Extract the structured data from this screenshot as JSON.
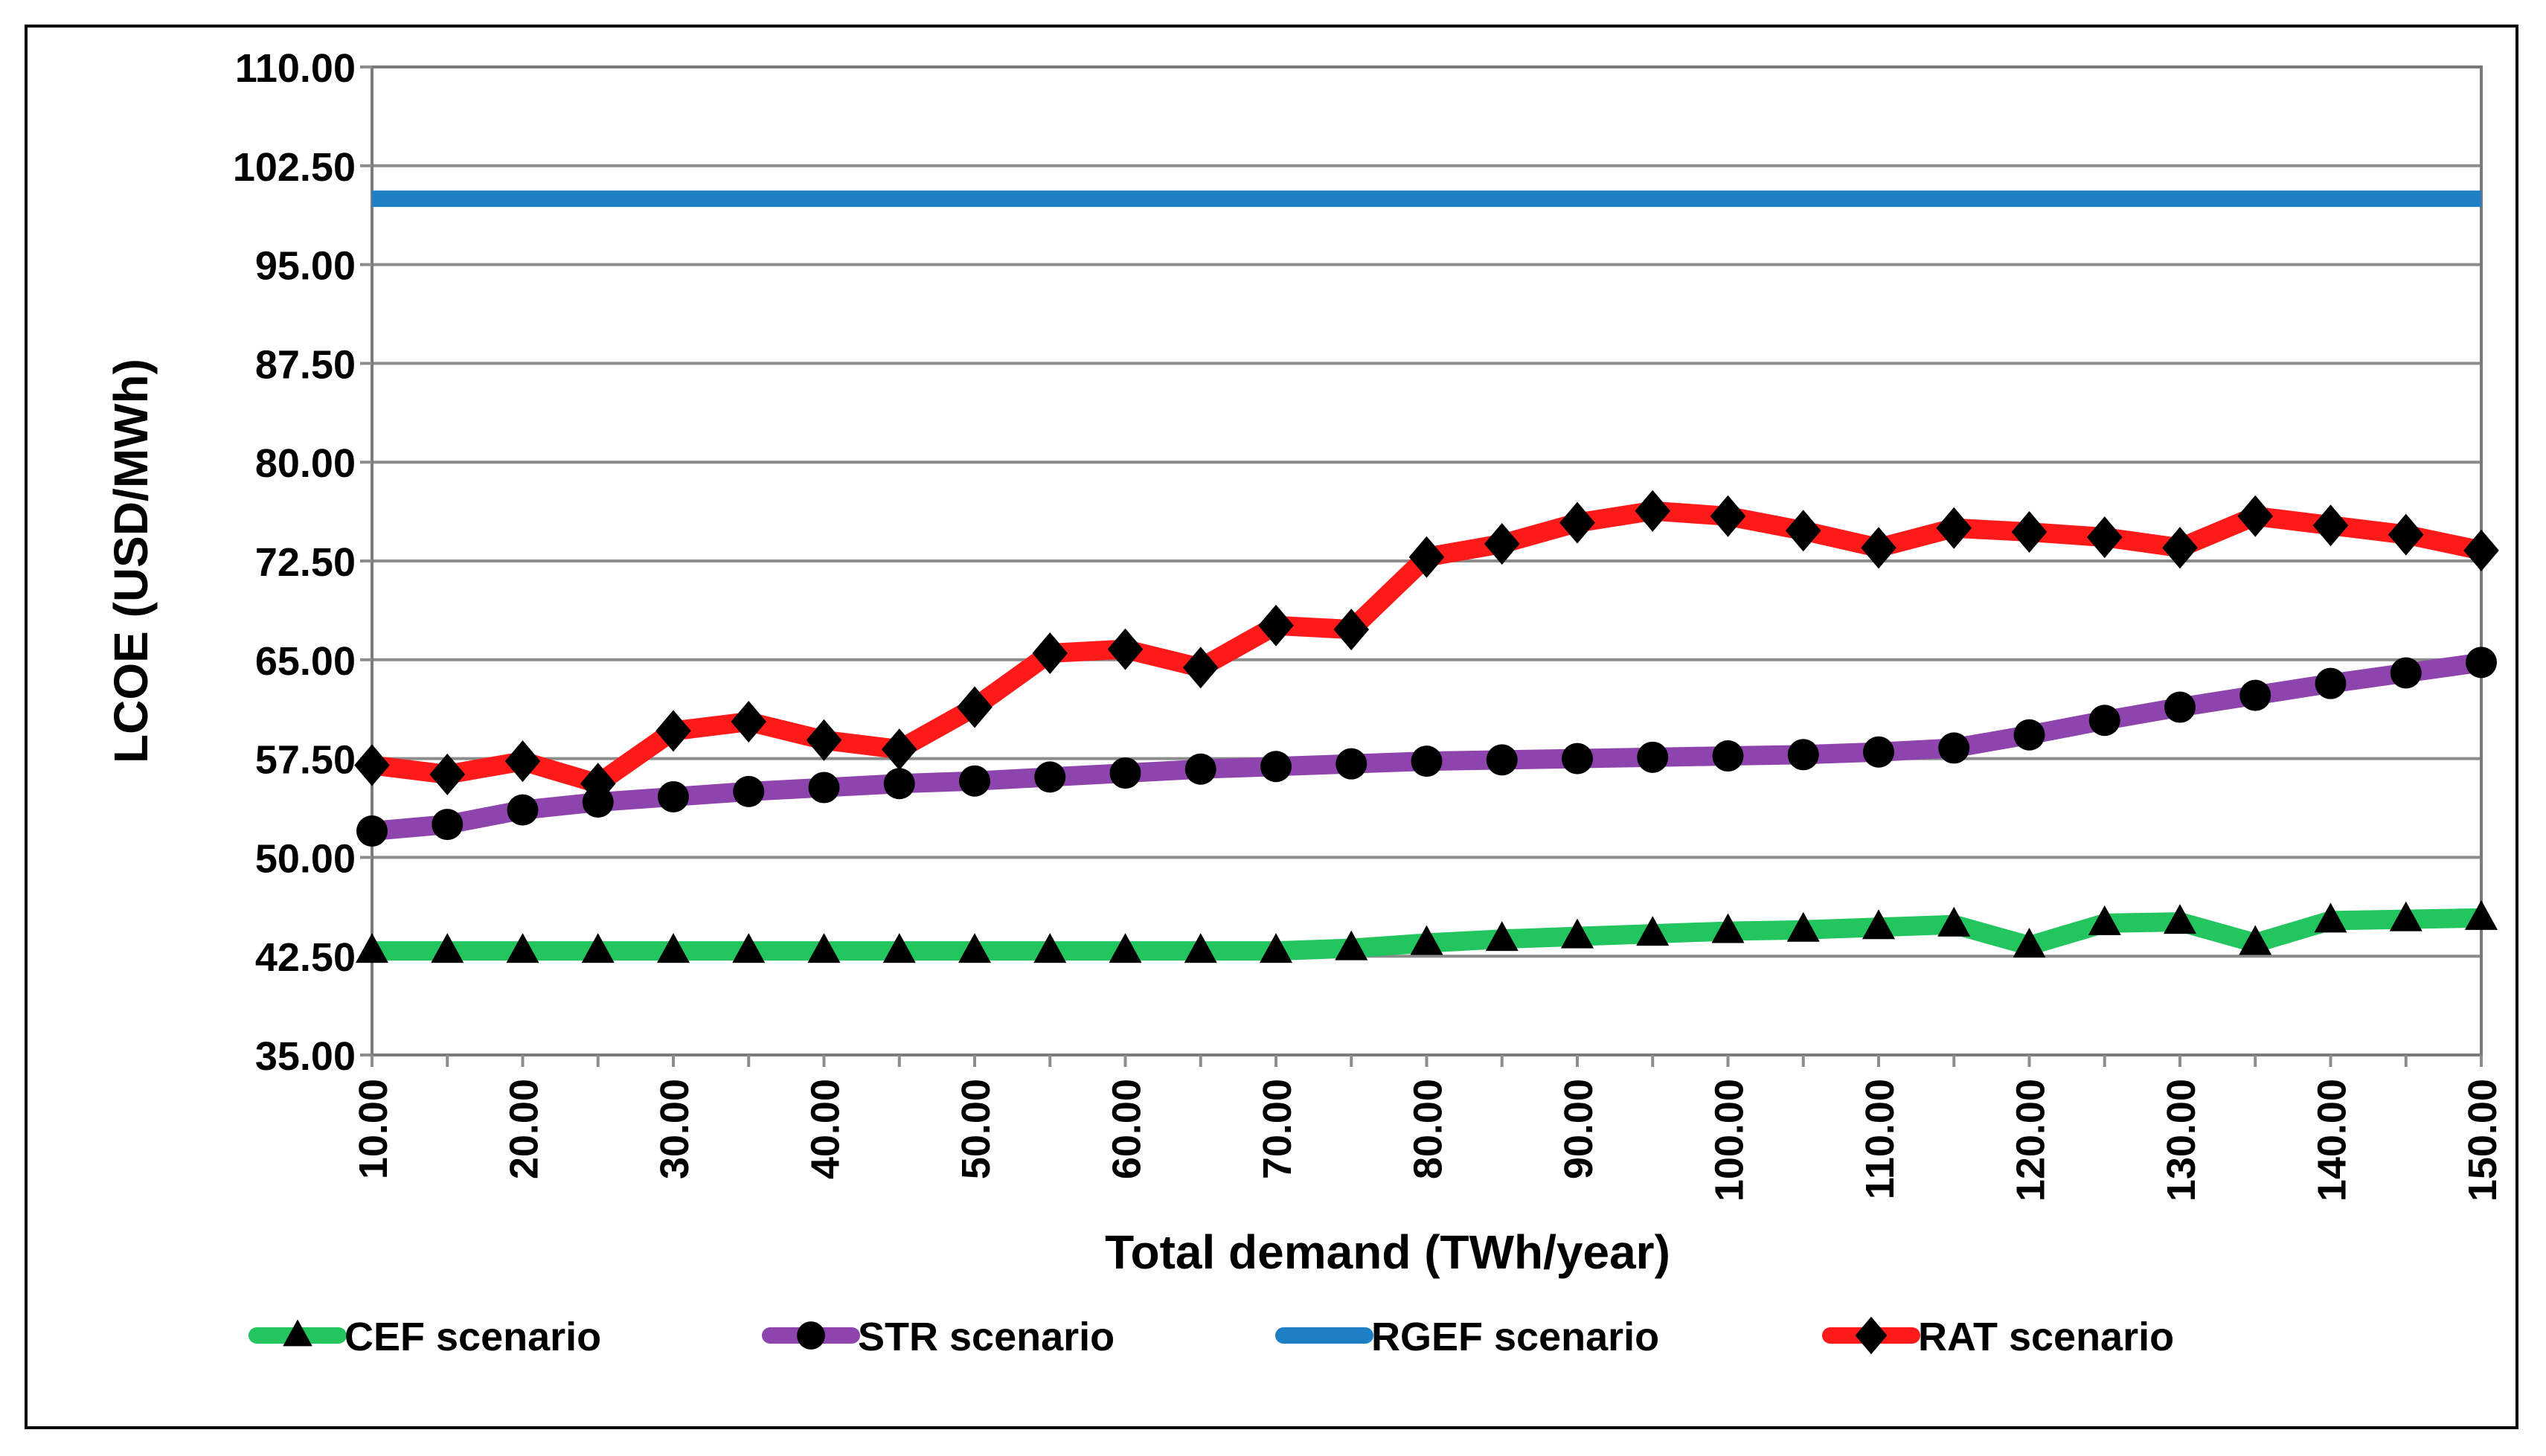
{
  "chart_data": {
    "type": "line",
    "xlabel": "Total demand  (TWh/year)",
    "ylabel": "LCOE (USD/MWh)",
    "xlim": [
      10,
      150
    ],
    "ylim": [
      35,
      110
    ],
    "x_tick_labels": [
      "10.00",
      "20.00",
      "30.00",
      "40.00",
      "50.00",
      "60.00",
      "70.00",
      "80.00",
      "90.00",
      "100.00",
      "110.00",
      "120.00",
      "130.00",
      "140.00",
      "150.00"
    ],
    "y_tick_labels": [
      "35.00",
      "42.50",
      "50.00",
      "57.50",
      "65.00",
      "72.50",
      "80.00",
      "87.50",
      "95.00",
      "102.50",
      "110.00"
    ],
    "grid": true,
    "legend_position": "bottom",
    "x": [
      10,
      15,
      20,
      25,
      30,
      35,
      40,
      45,
      50,
      55,
      60,
      65,
      70,
      75,
      80,
      85,
      90,
      95,
      100,
      105,
      110,
      115,
      120,
      125,
      130,
      135,
      140,
      145,
      150
    ],
    "series": [
      {
        "name": "CEF scenario",
        "color": "#22c55e",
        "marker": "triangle",
        "values": [
          42.9,
          42.9,
          42.9,
          42.9,
          42.9,
          42.9,
          42.9,
          42.9,
          42.9,
          42.9,
          42.9,
          42.9,
          42.9,
          43.1,
          43.5,
          43.8,
          44.0,
          44.2,
          44.4,
          44.5,
          44.7,
          44.9,
          43.3,
          45.0,
          45.1,
          43.5,
          45.2,
          45.3,
          45.4
        ]
      },
      {
        "name": "STR scenario",
        "color": "#8e44ad",
        "marker": "circle",
        "values": [
          52.0,
          52.5,
          53.6,
          54.2,
          54.6,
          55.0,
          55.3,
          55.6,
          55.8,
          56.1,
          56.4,
          56.7,
          56.9,
          57.1,
          57.3,
          57.4,
          57.5,
          57.6,
          57.7,
          57.8,
          58.0,
          58.3,
          59.3,
          60.4,
          61.4,
          62.3,
          63.2,
          64.0,
          64.8
        ]
      },
      {
        "name": "RGEF scenario",
        "color": "#1f7fc4",
        "marker": "none",
        "values": [
          100,
          100,
          100,
          100,
          100,
          100,
          100,
          100,
          100,
          100,
          100,
          100,
          100,
          100,
          100,
          100,
          100,
          100,
          100,
          100,
          100,
          100,
          100,
          100,
          100,
          100,
          100,
          100,
          100
        ]
      },
      {
        "name": "RAT scenario",
        "color": "#ff1a1a",
        "marker": "diamond",
        "values": [
          57.0,
          56.3,
          57.3,
          55.6,
          59.6,
          60.3,
          58.9,
          58.2,
          61.4,
          65.5,
          65.8,
          64.4,
          67.6,
          67.3,
          72.8,
          73.8,
          75.4,
          76.3,
          75.9,
          74.8,
          73.5,
          75.0,
          74.7,
          74.3,
          73.5,
          75.9,
          75.2,
          74.5,
          73.3
        ]
      }
    ]
  }
}
